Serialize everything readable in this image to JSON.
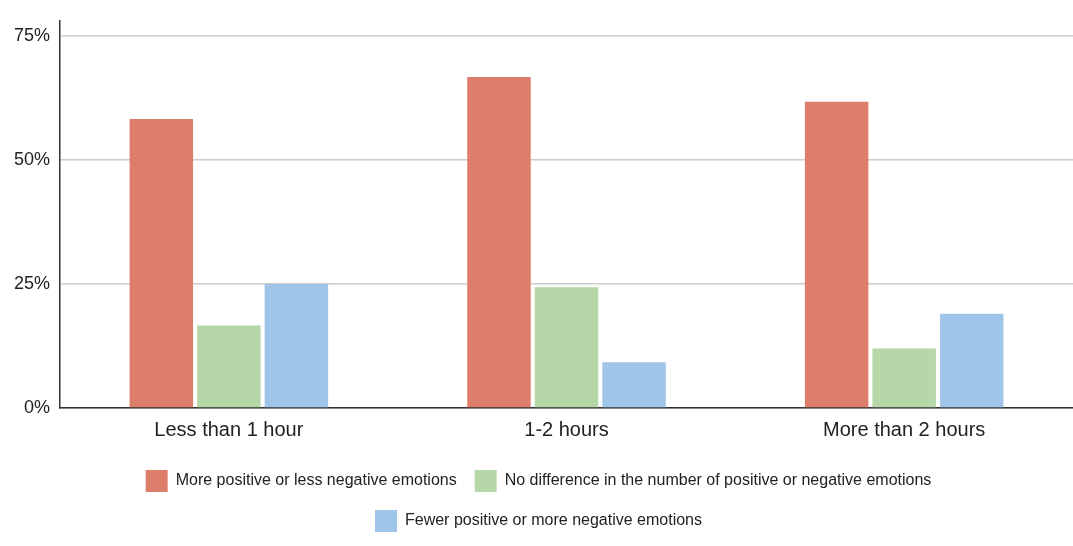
{
  "chart_data": {
    "type": "bar",
    "categories": [
      "Less than 1 hour",
      "1-2 hours",
      "More than 2 hours"
    ],
    "series": [
      {
        "name": "More positive or less negative emotions",
        "color": "#dd7e6b",
        "values": [
          58.2,
          66.7,
          61.7
        ]
      },
      {
        "name": "No difference in the number of positive or negative emotions",
        "color": "#b6d7a8",
        "values": [
          16.6,
          24.3,
          12.0
        ]
      },
      {
        "name": "Fewer positive or more negative emotions",
        "color": "#9fc5e8",
        "values": [
          25.0,
          9.2,
          19.0
        ]
      }
    ],
    "ylim": [
      0,
      78
    ],
    "yticks": [
      {
        "value": 0,
        "label": "0%"
      },
      {
        "value": 25,
        "label": "25%"
      },
      {
        "value": 50,
        "label": "50%"
      },
      {
        "value": 75,
        "label": "75%"
      }
    ],
    "grid": "y",
    "legend": "bottom"
  }
}
